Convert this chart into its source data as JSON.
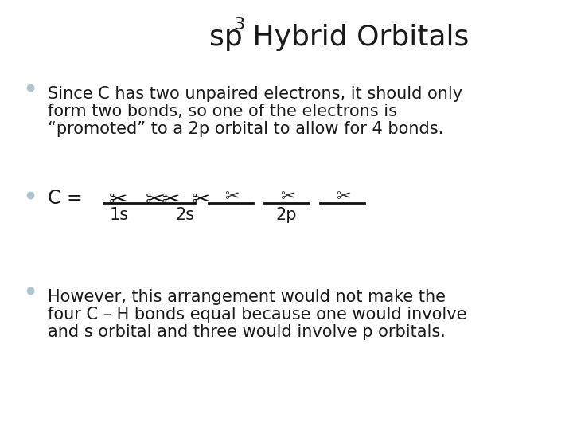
{
  "title_part1": "sp",
  "title_superscript": "3",
  "title_part2": " Hybrid Orbitals",
  "background_color": "#ffffff",
  "bullet_color": "#aec6d4",
  "text_color": "#1a1a1a",
  "bullet1_line1": "Since C has two unpaired electrons, it should only",
  "bullet1_line2": "form two bonds, so one of the electrons is",
  "bullet1_line3": "“promoted” to a 2p orbital to allow for 4 bonds.",
  "bullet3_line1": "However, this arrangement would not make the",
  "bullet3_line2": "four C – H bonds equal because one would involve",
  "bullet3_line3": "and s orbital and three would involve p orbitals.",
  "label_1s": "1s",
  "label_2s": "2s",
  "label_2p": "2p",
  "title_fontsize": 26,
  "body_fontsize": 15,
  "label_fontsize": 15
}
